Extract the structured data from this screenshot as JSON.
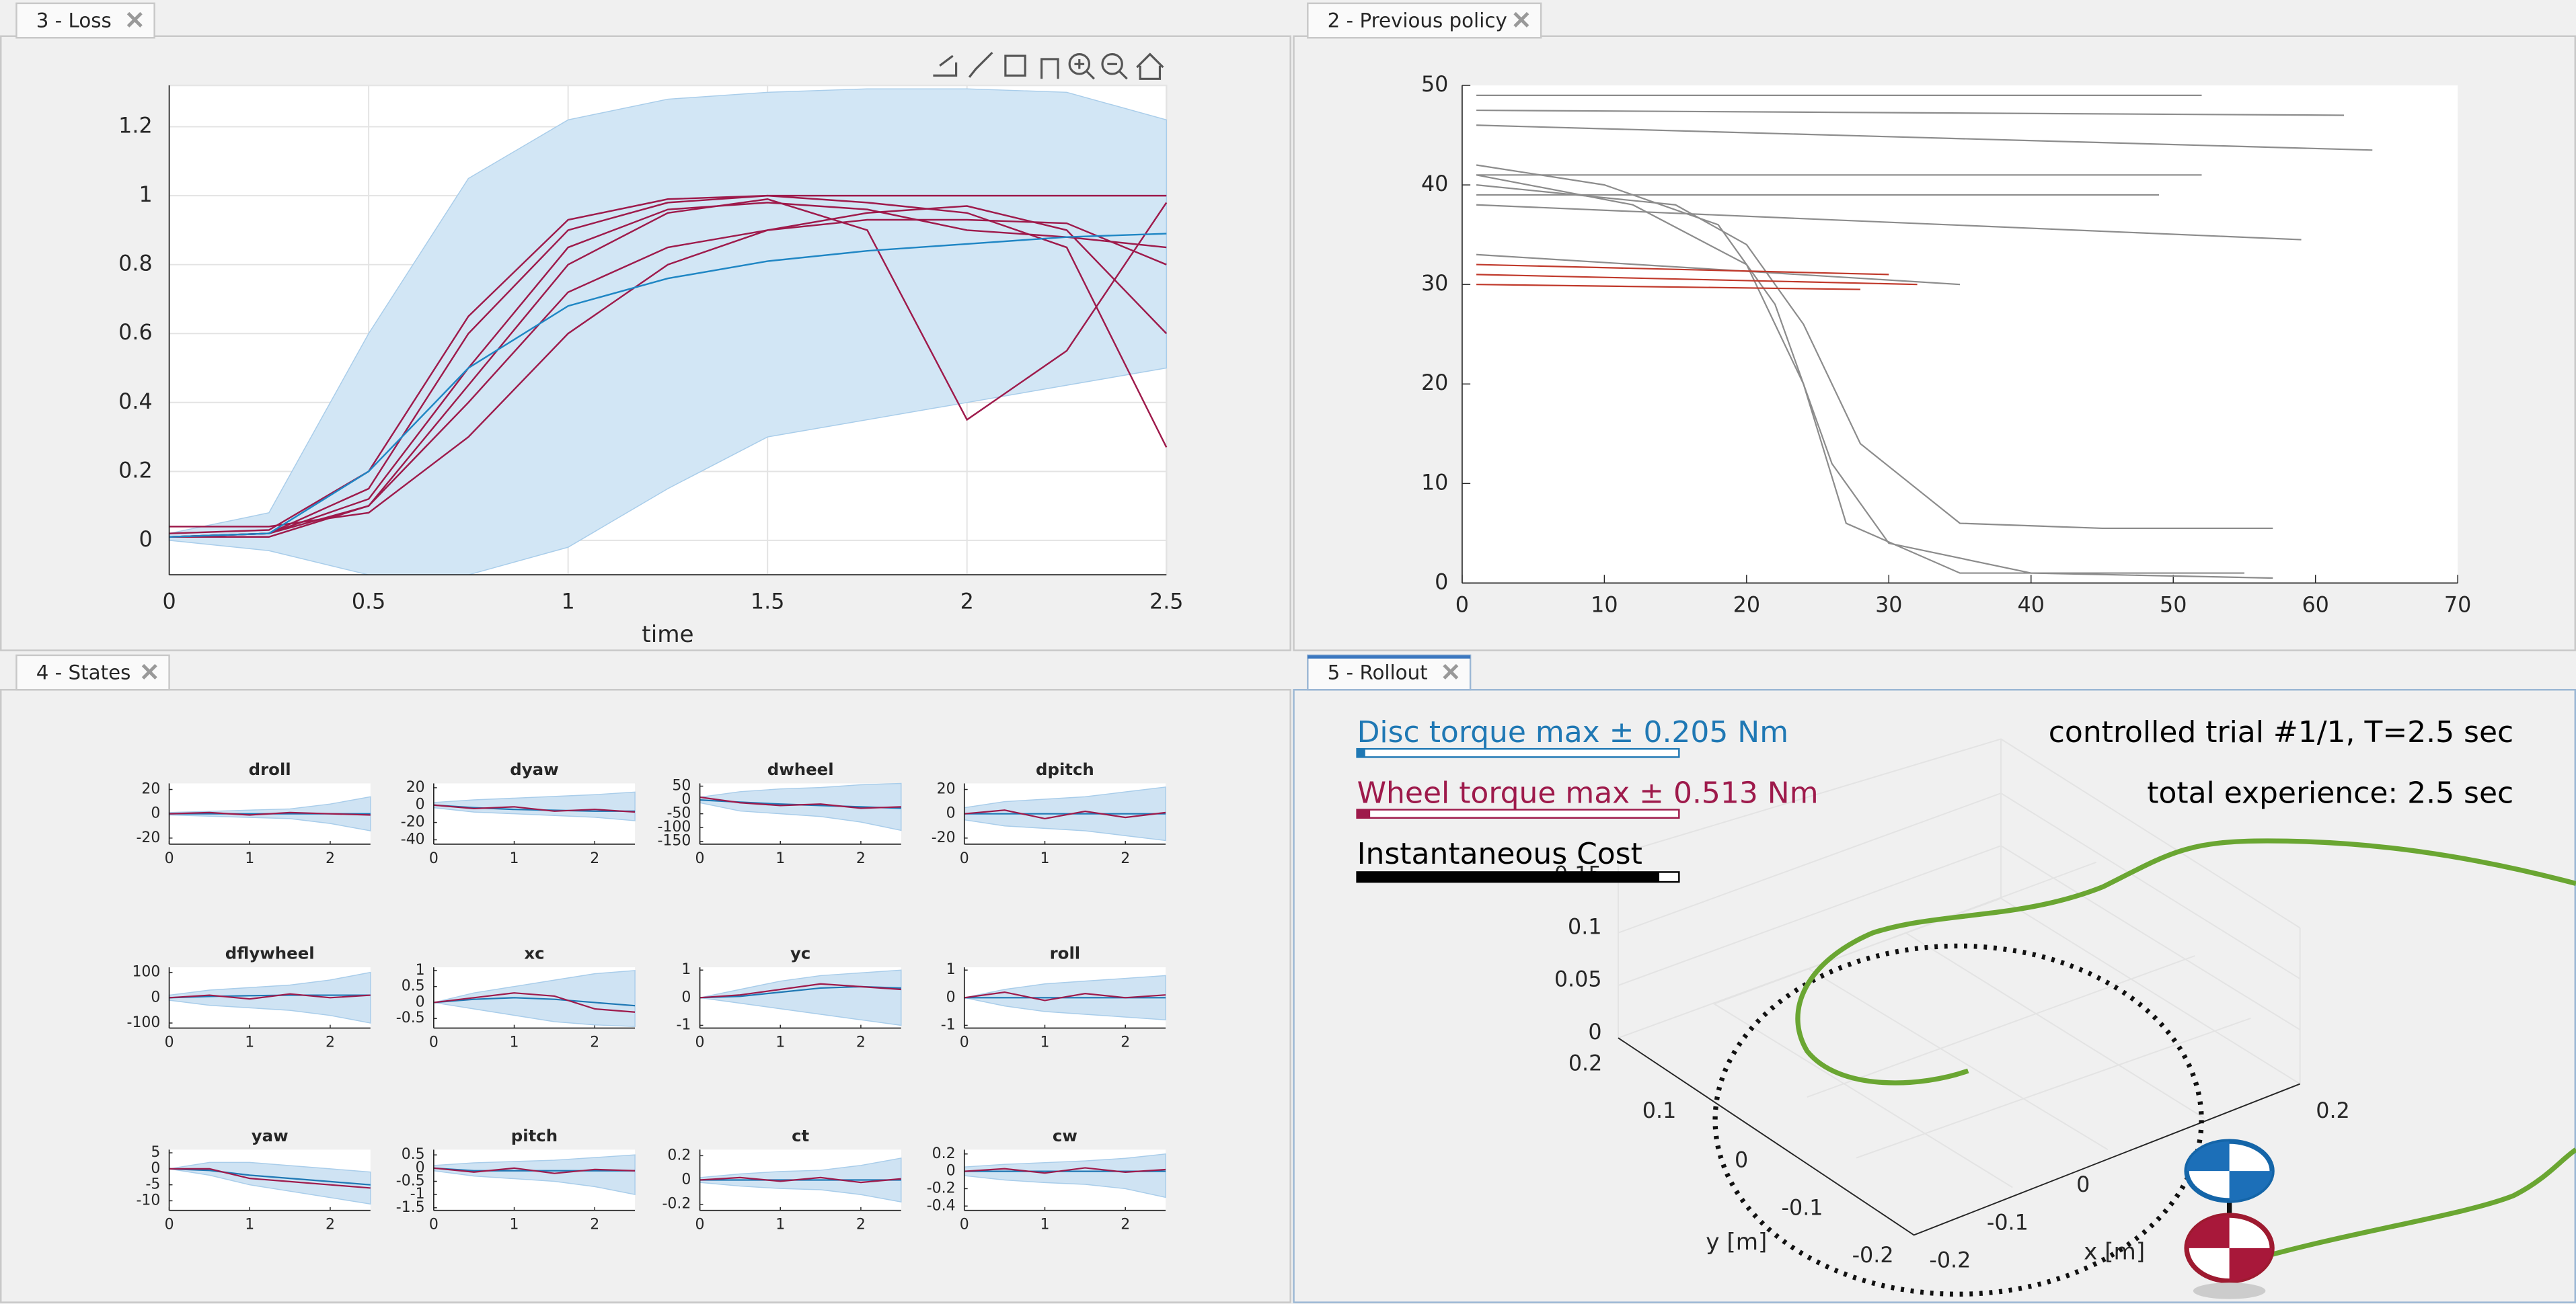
{
  "tabs": [
    "3 - Loss",
    "2 - Previous policy",
    "4 - States",
    "5 - Rollout"
  ],
  "chart_data": [
    {
      "type": "line",
      "x_label": "time",
      "x": [
        0,
        0.25,
        0.5,
        0.75,
        1,
        1.25,
        1.5,
        1.75,
        2,
        2.25,
        2.5
      ],
      "xlim": [
        0,
        2.5
      ],
      "xticks": [
        0,
        0.5,
        1,
        1.5,
        2,
        2.5
      ],
      "ylim": [
        -0.1,
        1.32
      ],
      "yticks": [
        0,
        0.2,
        0.4,
        0.6,
        0.8,
        1,
        1.2
      ],
      "grid": true,
      "band": {
        "color": "#d2e6f5",
        "lower": [
          0,
          -0.03,
          -0.1,
          -0.1,
          -0.02,
          0.15,
          0.3,
          0.35,
          0.4,
          0.45,
          0.5
        ],
        "upper": [
          0.02,
          0.08,
          0.6,
          1.05,
          1.22,
          1.28,
          1.3,
          1.31,
          1.31,
          1.3,
          1.22
        ]
      },
      "series": [
        {
          "color": "#9e1a4b",
          "values": [
            0.01,
            0.02,
            0.15,
            0.6,
            0.9,
            0.98,
            1,
            1,
            1,
            1,
            1
          ]
        },
        {
          "color": "#9e1a4b",
          "values": [
            0.01,
            0.02,
            0.1,
            0.45,
            0.8,
            0.95,
            0.99,
            0.9,
            0.35,
            0.55,
            0.98
          ]
        },
        {
          "color": "#9e1a4b",
          "values": [
            0.02,
            0.03,
            0.2,
            0.65,
            0.93,
            0.99,
            1,
            0.98,
            0.95,
            0.85,
            0.27
          ]
        },
        {
          "color": "#9e1a4b",
          "values": [
            0.04,
            0.04,
            0.08,
            0.3,
            0.6,
            0.8,
            0.9,
            0.95,
            0.97,
            0.9,
            0.6
          ]
        },
        {
          "color": "#9e1a4b",
          "values": [
            0.01,
            0.02,
            0.12,
            0.5,
            0.85,
            0.96,
            0.98,
            0.96,
            0.9,
            0.88,
            0.85
          ]
        },
        {
          "color": "#9e1a4b",
          "values": [
            0.01,
            0.01,
            0.1,
            0.4,
            0.72,
            0.85,
            0.9,
            0.93,
            0.93,
            0.92,
            0.8
          ]
        },
        {
          "color": "#1f86c4",
          "values": [
            0.01,
            0.02,
            0.2,
            0.5,
            0.68,
            0.76,
            0.81,
            0.84,
            0.86,
            0.88,
            0.89
          ]
        }
      ]
    },
    {
      "type": "line",
      "xlim": [
        0,
        70
      ],
      "xticks": [
        0,
        10,
        20,
        30,
        40,
        50,
        60,
        70
      ],
      "ylim": [
        0,
        50
      ],
      "yticks": [
        0,
        10,
        20,
        30,
        40,
        50
      ],
      "grid": false,
      "series": [
        {
          "color": "#8c8c8c",
          "x": [
            1,
            52
          ],
          "values": [
            49,
            49
          ]
        },
        {
          "color": "#8c8c8c",
          "x": [
            1,
            62
          ],
          "values": [
            47.5,
            47
          ]
        },
        {
          "color": "#8c8c8c",
          "x": [
            1,
            64
          ],
          "values": [
            46,
            43.5
          ]
        },
        {
          "color": "#8c8c8c",
          "x": [
            1,
            52
          ],
          "values": [
            41,
            41
          ]
        },
        {
          "color": "#8c8c8c",
          "x": [
            1,
            49
          ],
          "values": [
            39,
            39
          ]
        },
        {
          "color": "#8c8c8c",
          "x": [
            1,
            59
          ],
          "values": [
            38,
            34.5
          ]
        },
        {
          "color": "#8c8c8c",
          "x": [
            1,
            35
          ],
          "values": [
            33,
            30
          ]
        },
        {
          "color": "#8c8c8c",
          "x": [
            1,
            10,
            18,
            22,
            26,
            30,
            40,
            57
          ],
          "values": [
            42,
            40,
            36,
            28,
            12,
            4,
            1,
            0.5
          ]
        },
        {
          "color": "#8c8c8c",
          "x": [
            1,
            15,
            20,
            24,
            28,
            35,
            45,
            57
          ],
          "values": [
            40,
            38,
            34,
            26,
            14,
            6,
            5.5,
            5.5
          ]
        },
        {
          "color": "#8c8c8c",
          "x": [
            1,
            12,
            20,
            24,
            27,
            35,
            55
          ],
          "values": [
            41,
            38,
            32,
            20,
            6,
            1,
            1
          ]
        },
        {
          "color": "#c0392b",
          "x": [
            1,
            30
          ],
          "values": [
            32,
            31
          ]
        },
        {
          "color": "#c0392b",
          "x": [
            1,
            32
          ],
          "values": [
            31,
            30
          ]
        },
        {
          "color": "#c0392b",
          "x": [
            1,
            28
          ],
          "values": [
            30,
            29.5
          ]
        }
      ]
    },
    {
      "type": "line",
      "title": "droll",
      "x": [
        0,
        0.5,
        1,
        1.5,
        2,
        2.5
      ],
      "xlim": [
        0,
        2.5
      ],
      "xticks": [
        0,
        1,
        2
      ],
      "ylim": [
        -25,
        25
      ],
      "yticks": [
        -20,
        0,
        20
      ],
      "band": {
        "color": "#cfe3f3",
        "lower": [
          -1,
          -2,
          -3,
          -4,
          -8,
          -14
        ],
        "upper": [
          1,
          2,
          3,
          4,
          8,
          14
        ]
      },
      "series": [
        {
          "color": "#1f78b4",
          "values": [
            0,
            0,
            0,
            0,
            0,
            0
          ]
        },
        {
          "color": "#9e1a4b",
          "values": [
            0,
            1,
            -1,
            1,
            0,
            -1
          ]
        }
      ]
    },
    {
      "type": "line",
      "title": "dyaw",
      "x": [
        0,
        0.5,
        1,
        1.5,
        2,
        2.5
      ],
      "xlim": [
        0,
        2.5
      ],
      "xticks": [
        0,
        1,
        2
      ],
      "ylim": [
        -45,
        25
      ],
      "yticks": [
        -40,
        -20,
        0,
        20
      ],
      "band": {
        "color": "#cfe3f3",
        "lower": [
          -3,
          -8,
          -10,
          -12,
          -14,
          -18
        ],
        "upper": [
          3,
          6,
          8,
          10,
          12,
          15
        ]
      },
      "series": [
        {
          "color": "#1f78b4",
          "values": [
            0,
            -3,
            -5,
            -6,
            -7,
            -7
          ]
        },
        {
          "color": "#9e1a4b",
          "values": [
            0,
            -4,
            -2,
            -7,
            -5,
            -8
          ]
        }
      ]
    },
    {
      "type": "line",
      "title": "dwheel",
      "x": [
        0,
        0.5,
        1,
        1.5,
        2,
        2.5
      ],
      "xlim": [
        0,
        2.5
      ],
      "xticks": [
        0,
        1,
        2
      ],
      "ylim": [
        -160,
        60
      ],
      "yticks": [
        -150,
        -100,
        -50,
        0,
        50
      ],
      "band": {
        "color": "#cfe3f3",
        "lower": [
          -10,
          -40,
          -50,
          -60,
          -80,
          -110
        ],
        "upper": [
          10,
          30,
          40,
          45,
          55,
          60
        ]
      },
      "series": [
        {
          "color": "#1f78b4",
          "values": [
            0,
            -8,
            -15,
            -20,
            -25,
            -30
          ]
        },
        {
          "color": "#9e1a4b",
          "values": [
            10,
            -10,
            -20,
            -15,
            -30,
            -25
          ]
        }
      ]
    },
    {
      "type": "line",
      "title": "dpitch",
      "x": [
        0,
        0.5,
        1,
        1.5,
        2,
        2.5
      ],
      "xlim": [
        0,
        2.5
      ],
      "xticks": [
        0,
        1,
        2
      ],
      "ylim": [
        -25,
        25
      ],
      "yticks": [
        -20,
        0,
        20
      ],
      "band": {
        "color": "#cfe3f3",
        "lower": [
          -5,
          -10,
          -12,
          -14,
          -18,
          -22
        ],
        "upper": [
          5,
          10,
          12,
          14,
          18,
          22
        ]
      },
      "series": [
        {
          "color": "#1f78b4",
          "values": [
            0,
            0,
            0,
            0,
            0,
            0
          ]
        },
        {
          "color": "#9e1a4b",
          "values": [
            0,
            3,
            -4,
            2,
            -3,
            1
          ]
        }
      ]
    },
    {
      "type": "line",
      "title": "dflywheel",
      "x": [
        0,
        0.5,
        1,
        1.5,
        2,
        2.5
      ],
      "xlim": [
        0,
        2.5
      ],
      "xticks": [
        0,
        1,
        2
      ],
      "ylim": [
        -120,
        120
      ],
      "yticks": [
        -100,
        0,
        100
      ],
      "band": {
        "color": "#cfe3f3",
        "lower": [
          -10,
          -30,
          -40,
          -50,
          -70,
          -100
        ],
        "upper": [
          10,
          30,
          40,
          50,
          70,
          100
        ]
      },
      "series": [
        {
          "color": "#1f78b4",
          "values": [
            0,
            5,
            8,
            10,
            10,
            10
          ]
        },
        {
          "color": "#9e1a4b",
          "values": [
            0,
            10,
            -5,
            15,
            0,
            10
          ]
        }
      ]
    },
    {
      "type": "line",
      "title": "xc",
      "x": [
        0,
        0.5,
        1,
        1.5,
        2,
        2.5
      ],
      "xlim": [
        0,
        2.5
      ],
      "xticks": [
        0,
        1,
        2
      ],
      "ylim": [
        -0.8,
        1.1
      ],
      "yticks": [
        -0.5,
        0,
        0.5,
        1
      ],
      "band": {
        "color": "#cfe3f3",
        "lower": [
          0,
          -0.2,
          -0.4,
          -0.6,
          -0.7,
          -0.75
        ],
        "upper": [
          0,
          0.3,
          0.5,
          0.7,
          0.9,
          1
        ]
      },
      "series": [
        {
          "color": "#1f78b4",
          "values": [
            0,
            0.1,
            0.15,
            0.1,
            0,
            -0.1
          ]
        },
        {
          "color": "#9e1a4b",
          "values": [
            0,
            0.15,
            0.3,
            0.2,
            -0.2,
            -0.3
          ]
        }
      ]
    },
    {
      "type": "line",
      "title": "yc",
      "x": [
        0,
        0.5,
        1,
        1.5,
        2,
        2.5
      ],
      "xlim": [
        0,
        2.5
      ],
      "xticks": [
        0,
        1,
        2
      ],
      "ylim": [
        -1.1,
        1.1
      ],
      "yticks": [
        -1,
        0,
        1
      ],
      "band": {
        "color": "#cfe3f3",
        "lower": [
          0,
          -0.2,
          -0.4,
          -0.6,
          -0.8,
          -1
        ],
        "upper": [
          0,
          0.3,
          0.6,
          0.8,
          0.9,
          1
        ]
      },
      "series": [
        {
          "color": "#1f78b4",
          "values": [
            0,
            0.05,
            0.2,
            0.35,
            0.4,
            0.35
          ]
        },
        {
          "color": "#9e1a4b",
          "values": [
            0,
            0.1,
            0.3,
            0.5,
            0.4,
            0.3
          ]
        }
      ]
    },
    {
      "type": "line",
      "title": "roll",
      "x": [
        0,
        0.5,
        1,
        1.5,
        2,
        2.5
      ],
      "xlim": [
        0,
        2.5
      ],
      "xticks": [
        0,
        1,
        2
      ],
      "ylim": [
        -1.1,
        1.1
      ],
      "yticks": [
        -1,
        0,
        1
      ],
      "band": {
        "color": "#cfe3f3",
        "lower": [
          0,
          -0.3,
          -0.5,
          -0.6,
          -0.7,
          -0.8
        ],
        "upper": [
          0,
          0.3,
          0.5,
          0.6,
          0.7,
          0.8
        ]
      },
      "series": [
        {
          "color": "#1f78b4",
          "values": [
            0,
            0,
            0,
            0,
            0,
            0
          ]
        },
        {
          "color": "#9e1a4b",
          "values": [
            0,
            0.2,
            -0.1,
            0.15,
            0,
            0.1
          ]
        }
      ]
    },
    {
      "type": "line",
      "title": "yaw",
      "x": [
        0,
        0.5,
        1,
        1.5,
        2,
        2.5
      ],
      "xlim": [
        0,
        2.5
      ],
      "xticks": [
        0,
        1,
        2
      ],
      "ylim": [
        -13,
        6
      ],
      "yticks": [
        -10,
        -5,
        0,
        5
      ],
      "band": {
        "color": "#cfe3f3",
        "lower": [
          0,
          -2,
          -5,
          -7,
          -9,
          -11
        ],
        "upper": [
          0,
          2,
          2,
          1,
          0,
          -1
        ]
      },
      "series": [
        {
          "color": "#1f78b4",
          "values": [
            0,
            -0.5,
            -2,
            -3,
            -4,
            -5
          ]
        },
        {
          "color": "#9e1a4b",
          "values": [
            0,
            0,
            -3,
            -4,
            -5,
            -6
          ]
        }
      ]
    },
    {
      "type": "line",
      "title": "pitch",
      "x": [
        0,
        0.5,
        1,
        1.5,
        2,
        2.5
      ],
      "xlim": [
        0,
        2.5
      ],
      "xticks": [
        0,
        1,
        2
      ],
      "ylim": [
        -1.6,
        0.7
      ],
      "yticks": [
        -1.5,
        -1,
        -0.5,
        0,
        0.5
      ],
      "band": {
        "color": "#cfe3f3",
        "lower": [
          -0.1,
          -0.3,
          -0.4,
          -0.5,
          -0.7,
          -1
        ],
        "upper": [
          0.1,
          0.2,
          0.25,
          0.3,
          0.4,
          0.5
        ]
      },
      "series": [
        {
          "color": "#1f78b4",
          "values": [
            0,
            -0.1,
            -0.1,
            -0.1,
            -0.1,
            -0.1
          ]
        },
        {
          "color": "#9e1a4b",
          "values": [
            0,
            -0.15,
            0,
            -0.2,
            -0.05,
            -0.1
          ]
        }
      ]
    },
    {
      "type": "line",
      "title": "ct",
      "x": [
        0,
        0.5,
        1,
        1.5,
        2,
        2.5
      ],
      "xlim": [
        0,
        2.5
      ],
      "xticks": [
        0,
        1,
        2
      ],
      "ylim": [
        -0.25,
        0.25
      ],
      "yticks": [
        -0.2,
        0,
        0.2
      ],
      "band": {
        "color": "#cfe3f3",
        "lower": [
          -0.02,
          -0.05,
          -0.07,
          -0.08,
          -0.12,
          -0.18
        ],
        "upper": [
          0.02,
          0.05,
          0.07,
          0.08,
          0.12,
          0.18
        ]
      },
      "series": [
        {
          "color": "#1f78b4",
          "values": [
            0,
            0,
            0,
            0,
            0,
            0
          ]
        },
        {
          "color": "#9e1a4b",
          "values": [
            0,
            0.02,
            -0.01,
            0.02,
            -0.02,
            0.01
          ]
        }
      ]
    },
    {
      "type": "line",
      "title": "cw",
      "x": [
        0,
        0.5,
        1,
        1.5,
        2,
        2.5
      ],
      "xlim": [
        0,
        2.5
      ],
      "xticks": [
        0,
        1,
        2
      ],
      "ylim": [
        -0.45,
        0.25
      ],
      "yticks": [
        -0.4,
        -0.2,
        0,
        0.2
      ],
      "band": {
        "color": "#cfe3f3",
        "lower": [
          -0.05,
          -0.1,
          -0.13,
          -0.15,
          -0.2,
          -0.3
        ],
        "upper": [
          0.05,
          0.08,
          0.1,
          0.12,
          0.15,
          0.2
        ]
      },
      "series": [
        {
          "color": "#1f78b4",
          "values": [
            0,
            0,
            0,
            0,
            0,
            0
          ]
        },
        {
          "color": "#9e1a4b",
          "values": [
            0,
            0.03,
            -0.02,
            0.04,
            -0.01,
            0.02
          ]
        }
      ]
    }
  ],
  "rollout": {
    "disc_legend": "Disc torque    max ± 0.205 Nm",
    "wheel_legend": "Wheel torque max ± 0.513 Nm",
    "cost_label": "Instantaneous Cost",
    "trial": "controlled trial #1/1, T=2.5 sec",
    "experience": "total experience: 2.5 sec",
    "y_label": "y [m]",
    "x_label": "x [m]",
    "z_ticks": [
      "0",
      "0.05",
      "0.1",
      "0.15"
    ],
    "y_ticks": [
      "0.2",
      "0.1",
      "0",
      "-0.1",
      "-0.2"
    ],
    "x_ticks": [
      "-0.2",
      "-0.1",
      "0",
      "0.2"
    ]
  }
}
